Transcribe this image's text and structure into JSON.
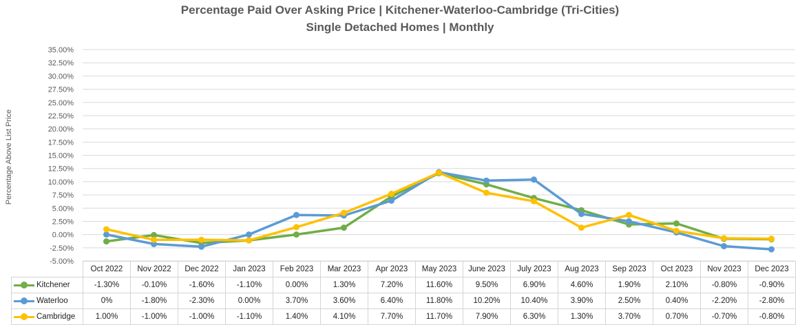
{
  "chart_data": {
    "type": "line",
    "title": "Percentage Paid Over Asking Price | Kitchener-Waterloo-Cambridge (Tri-Cities)",
    "subtitle": "Single Detached Homes | Monthly",
    "xlabel": "",
    "ylabel": "Percentage Above List Price",
    "ylim": [
      -5,
      35
    ],
    "yticks": [
      -5,
      -2.5,
      0,
      2.5,
      5,
      7.5,
      10,
      12.5,
      15,
      17.5,
      20,
      22.5,
      25,
      27.5,
      30,
      32.5,
      35
    ],
    "ytick_labels": [
      "-5.00%",
      "-2.50%",
      "0.00%",
      "2.50%",
      "5.00%",
      "7.50%",
      "10.00%",
      "12.50%",
      "15.00%",
      "17.50%",
      "20.00%",
      "22.50%",
      "25.00%",
      "27.50%",
      "30.00%",
      "32.50%",
      "35.00%"
    ],
    "grid": true,
    "legend": "data-table",
    "categories": [
      "Oct 2022",
      "Nov 2022",
      "Dec 2022",
      "Jan 2023",
      "Feb 2023",
      "Mar 2023",
      "Apr 2023",
      "May 2023",
      "June 2023",
      "July 2023",
      "Aug 2023",
      "Sep 2023",
      "Oct 2023",
      "Nov 2023",
      "Dec 2023"
    ],
    "series": [
      {
        "name": "Kitchener",
        "color": "#70ad47",
        "values": [
          -1.3,
          -0.1,
          -1.6,
          -1.1,
          0.0,
          1.3,
          7.2,
          11.6,
          9.5,
          6.9,
          4.6,
          1.9,
          2.1,
          -0.8,
          -0.9
        ],
        "labels": [
          "-1.30%",
          "-0.10%",
          "-1.60%",
          "-1.10%",
          "0.00%",
          "1.30%",
          "7.20%",
          "11.60%",
          "9.50%",
          "6.90%",
          "4.60%",
          "1.90%",
          "2.10%",
          "-0.80%",
          "-0.90%"
        ]
      },
      {
        "name": "Waterloo",
        "color": "#5b9bd5",
        "values": [
          0,
          -1.8,
          -2.3,
          0.0,
          3.7,
          3.6,
          6.4,
          11.8,
          10.2,
          10.4,
          3.9,
          2.5,
          0.4,
          -2.2,
          -2.8
        ],
        "labels": [
          "0%",
          "-1.80%",
          "-2.30%",
          "0.00%",
          "3.70%",
          "3.60%",
          "6.40%",
          "11.80%",
          "10.20%",
          "10.40%",
          "3.90%",
          "2.50%",
          "0.40%",
          "-2.20%",
          "-2.80%"
        ]
      },
      {
        "name": "Cambridge",
        "color": "#ffc000",
        "values": [
          1.0,
          -1.0,
          -1.0,
          -1.1,
          1.4,
          4.1,
          7.7,
          11.7,
          7.9,
          6.3,
          1.3,
          3.7,
          0.7,
          -0.7,
          -0.8
        ],
        "labels": [
          "1.00%",
          "-1.00%",
          "-1.00%",
          "-1.10%",
          "1.40%",
          "4.10%",
          "7.70%",
          "11.70%",
          "7.90%",
          "6.30%",
          "1.30%",
          "3.70%",
          "0.70%",
          "-0.70%",
          "-0.80%"
        ]
      }
    ]
  }
}
